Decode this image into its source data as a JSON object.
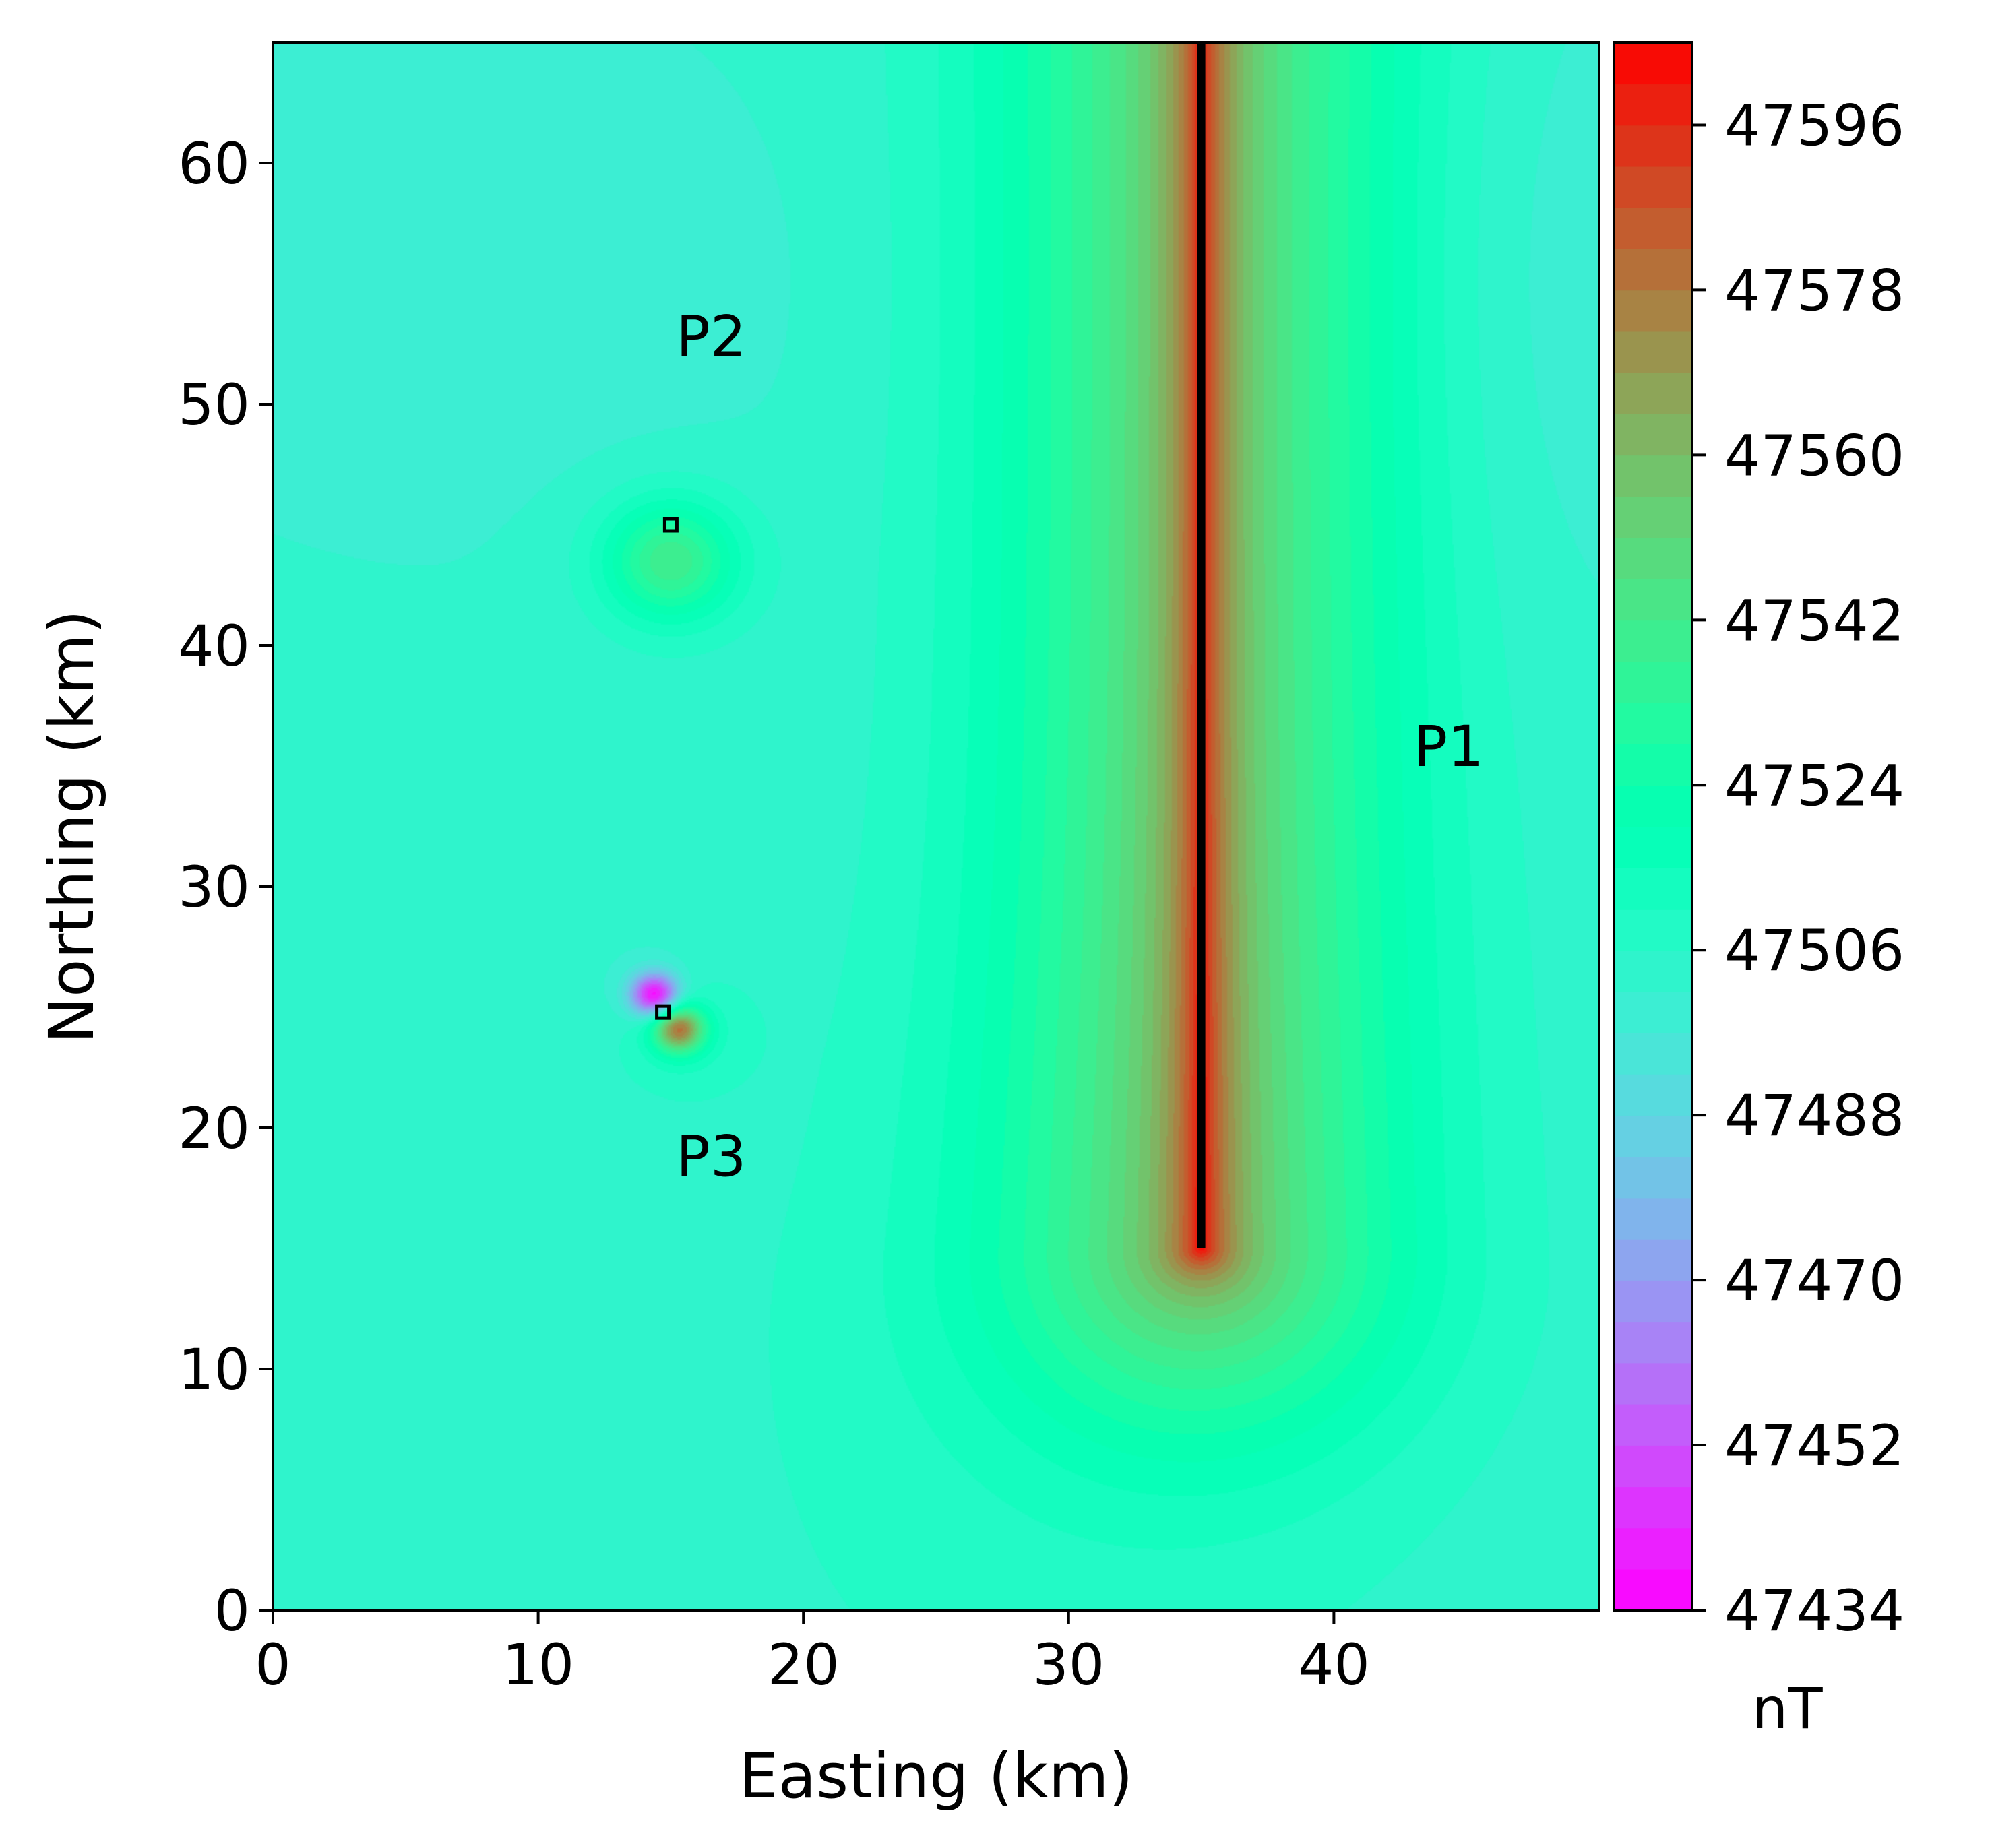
{
  "chart_data": {
    "type": "heatmap",
    "title": "",
    "xlabel": "Easting (km)",
    "ylabel": "Northing (km)",
    "xlim": [
      0,
      50
    ],
    "ylim": [
      0,
      65
    ],
    "xticks": [
      "0",
      "10",
      "20",
      "30",
      "40"
    ],
    "yticks": [
      "0",
      "10",
      "20",
      "30",
      "40",
      "50",
      "60"
    ],
    "colorbar": {
      "label": "nT",
      "min": 47434,
      "max": 47605,
      "ticks": [
        "47434",
        "47452",
        "47470",
        "47488",
        "47506",
        "47524",
        "47542",
        "47560",
        "47578",
        "47596"
      ],
      "colormap": "rainbow",
      "levels": 38
    },
    "background_value": 47502,
    "annotations": [
      {
        "text": "P1",
        "x": 43,
        "y": 35
      },
      {
        "text": "P2",
        "x": 15.2,
        "y": 52
      },
      {
        "text": "P3",
        "x": 15.2,
        "y": 18
      }
    ],
    "sources": [
      {
        "name": "P1",
        "type": "line",
        "x": 35,
        "y_start": 15,
        "y_end": 65,
        "peak_value": 47600
      },
      {
        "name": "P2",
        "type": "point",
        "x": 15,
        "y": 45,
        "peak_value": 47560
      },
      {
        "name": "P3",
        "type": "point",
        "x": 14.7,
        "y": 24.8,
        "peak_value": 47580,
        "low_value": 47434
      }
    ]
  }
}
